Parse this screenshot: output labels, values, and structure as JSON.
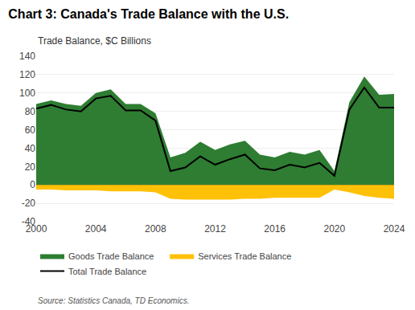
{
  "chart_data": {
    "type": "area",
    "title": "Chart 3: Canada's Trade Balance with the U.S.",
    "subtitle": "Trade Balance, $C Billions",
    "source": "Source: Statistics Canada, TD Economics.",
    "x": [
      2000,
      2001,
      2002,
      2003,
      2004,
      2005,
      2006,
      2007,
      2008,
      2009,
      2010,
      2011,
      2012,
      2013,
      2014,
      2015,
      2016,
      2017,
      2018,
      2019,
      2020,
      2021,
      2022,
      2023,
      2024
    ],
    "series": [
      {
        "name": "Goods Trade Balance",
        "type": "area",
        "color": "#2e7d32",
        "values": [
          88,
          92,
          88,
          86,
          100,
          104,
          88,
          88,
          78,
          30,
          35,
          47,
          38,
          44,
          48,
          33,
          30,
          36,
          33,
          38,
          15,
          90,
          118,
          98,
          99
        ]
      },
      {
        "name": "Services Trade Balance",
        "type": "area",
        "color": "#ffc107",
        "values": [
          -5,
          -5,
          -6,
          -6,
          -6,
          -7,
          -7,
          -7,
          -8,
          -15,
          -16,
          -16,
          -16,
          -16,
          -15,
          -15,
          -14,
          -14,
          -14,
          -14,
          -5,
          -8,
          -12,
          -14,
          -15
        ]
      },
      {
        "name": "Total Trade Balance",
        "type": "line",
        "color": "#000000",
        "values": [
          83,
          87,
          82,
          80,
          94,
          97,
          81,
          81,
          70,
          15,
          19,
          31,
          22,
          28,
          33,
          18,
          16,
          22,
          19,
          24,
          10,
          82,
          106,
          84,
          84
        ]
      }
    ],
    "xlim": [
      2000,
      2024
    ],
    "xticks": [
      2000,
      2004,
      2008,
      2012,
      2016,
      2020,
      2024
    ],
    "ylim": [
      -40,
      140
    ],
    "yticks": [
      -40,
      -20,
      0,
      20,
      40,
      60,
      80,
      100,
      120,
      140
    ],
    "grid": true,
    "legend": "bottom"
  }
}
